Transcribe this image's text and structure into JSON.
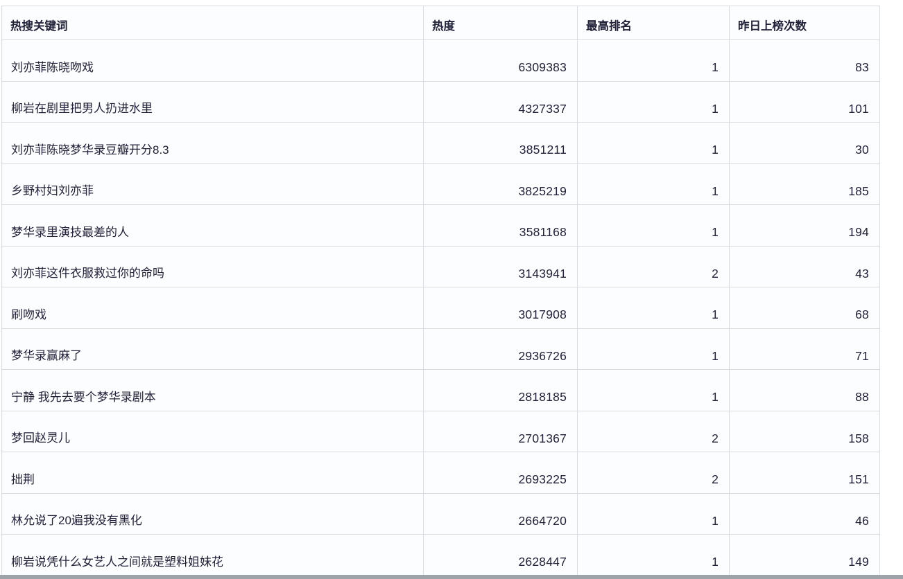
{
  "table": {
    "columns": [
      {
        "key": "keyword",
        "label": "热搜关键词",
        "align": "left"
      },
      {
        "key": "heat",
        "label": "热度",
        "align": "right"
      },
      {
        "key": "best_rank",
        "label": "最高排名",
        "align": "right"
      },
      {
        "key": "times_yday",
        "label": "昨日上榜次数",
        "align": "right"
      }
    ],
    "rows": [
      [
        "刘亦菲陈晓吻戏",
        "6309383",
        "1",
        "83"
      ],
      [
        "柳岩在剧里把男人扔进水里",
        "4327337",
        "1",
        "101"
      ],
      [
        "刘亦菲陈晓梦华录豆瓣开分8.3",
        "3851211",
        "1",
        "30"
      ],
      [
        "乡野村妇刘亦菲",
        "3825219",
        "1",
        "185"
      ],
      [
        "梦华录里演技最差的人",
        "3581168",
        "1",
        "194"
      ],
      [
        "刘亦菲这件衣服救过你的命吗",
        "3143941",
        "2",
        "43"
      ],
      [
        "刷吻戏",
        "3017908",
        "1",
        "68"
      ],
      [
        "梦华录赢麻了",
        "2936726",
        "1",
        "71"
      ],
      [
        "宁静 我先去要个梦华录剧本",
        "2818185",
        "1",
        "88"
      ],
      [
        "梦回赵灵儿",
        "2701367",
        "2",
        "158"
      ],
      [
        "拙荆",
        "2693225",
        "2",
        "151"
      ],
      [
        "林允说了20遍我没有黑化",
        "2664720",
        "1",
        "46"
      ],
      [
        "柳岩说凭什么女艺人之间就是塑料姐妹花",
        "2628447",
        "1",
        "149"
      ]
    ]
  },
  "colors": {
    "grid_line": "#d8dce2",
    "cell_background": "#fcfdfe",
    "text": "#22223a",
    "bottom_bar": "#9ea3a9"
  }
}
